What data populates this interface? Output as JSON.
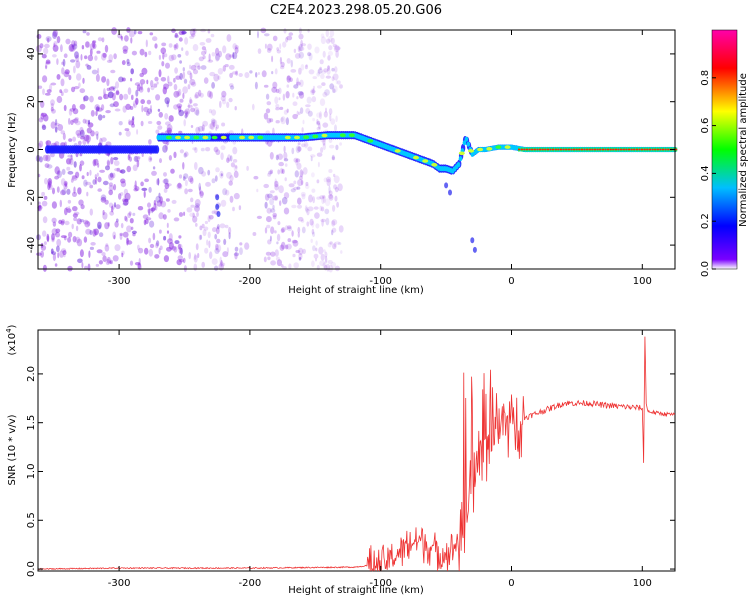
{
  "title": "C2E4.2023.298.05.20.G06",
  "chart_data": [
    {
      "type": "heatmap",
      "xlabel": "Height of straight line (km)",
      "ylabel": "Frequency (Hz)",
      "xlim": [
        -362,
        125
      ],
      "ylim": [
        -50,
        50
      ],
      "xticks": [
        -300,
        -200,
        -100,
        0,
        100
      ],
      "yticks": [
        -40,
        -20,
        0,
        20,
        40
      ],
      "colorbar": {
        "label": "Normalized spectral amplitude",
        "range": [
          0.0,
          1.0
        ],
        "ticks": [
          "0.0",
          "0.2",
          "0.4",
          "0.6",
          "0.8"
        ],
        "colors": [
          "#ffffff",
          "#7a00ff",
          "#0000ff",
          "#00bfff",
          "#00ff00",
          "#ffff00",
          "#ff0000",
          "#ff00ff"
        ]
      },
      "ridge": {
        "x": [
          -270,
          -250,
          -200,
          -160,
          -140,
          -120,
          -110,
          -100,
          -90,
          -80,
          -70,
          -60,
          -55,
          -50,
          -45,
          -40,
          -35,
          -30,
          -25,
          -20,
          -10,
          0,
          10,
          50,
          100,
          125
        ],
        "y": [
          5,
          5,
          5,
          5,
          6,
          6,
          4,
          2,
          0,
          -2,
          -4,
          -6,
          -8,
          -8,
          -9,
          -6,
          5,
          -2,
          0,
          0,
          1,
          1,
          0,
          0,
          0,
          0
        ]
      },
      "noise_region_x": [
        -362,
        -130
      ]
    },
    {
      "type": "line",
      "xlabel": "Height of straight line (km)",
      "ylabel": "SNR (10 * v/v)",
      "exponent": "(x10",
      "exponent_sup": "4",
      "exponent_close": ")",
      "xlim": [
        -362,
        125
      ],
      "ylim": [
        -0.02,
        2.45
      ],
      "xticks": [
        -300,
        -200,
        -100,
        0,
        100
      ],
      "yticks": [
        0.0,
        0.5,
        1.0,
        1.5,
        2.0
      ],
      "ytick_labels": [
        "0.0",
        "0.5",
        "1.0",
        "1.5",
        "2.0"
      ],
      "color": "#ee3333",
      "series": [
        {
          "x": [
            -362,
            -300,
            -200,
            -120,
            -100,
            -90,
            -80,
            -70,
            -60,
            -50,
            -40,
            -35,
            -30,
            -25,
            -20,
            -15,
            -10,
            -5,
            0,
            10,
            20,
            30,
            40,
            50,
            60,
            70,
            80,
            90,
            100,
            101,
            102,
            103,
            104,
            110,
            125
          ],
          "y": [
            0.0,
            0.01,
            0.01,
            0.02,
            0.05,
            0.12,
            0.25,
            0.3,
            0.2,
            0.15,
            0.3,
            0.5,
            0.9,
            1.2,
            1.3,
            1.4,
            1.5,
            1.55,
            1.5,
            1.55,
            1.6,
            1.65,
            1.7,
            1.7,
            1.7,
            1.68,
            1.67,
            1.66,
            1.65,
            1.1,
            2.4,
            1.7,
            1.62,
            1.6,
            1.58
          ]
        }
      ]
    }
  ]
}
